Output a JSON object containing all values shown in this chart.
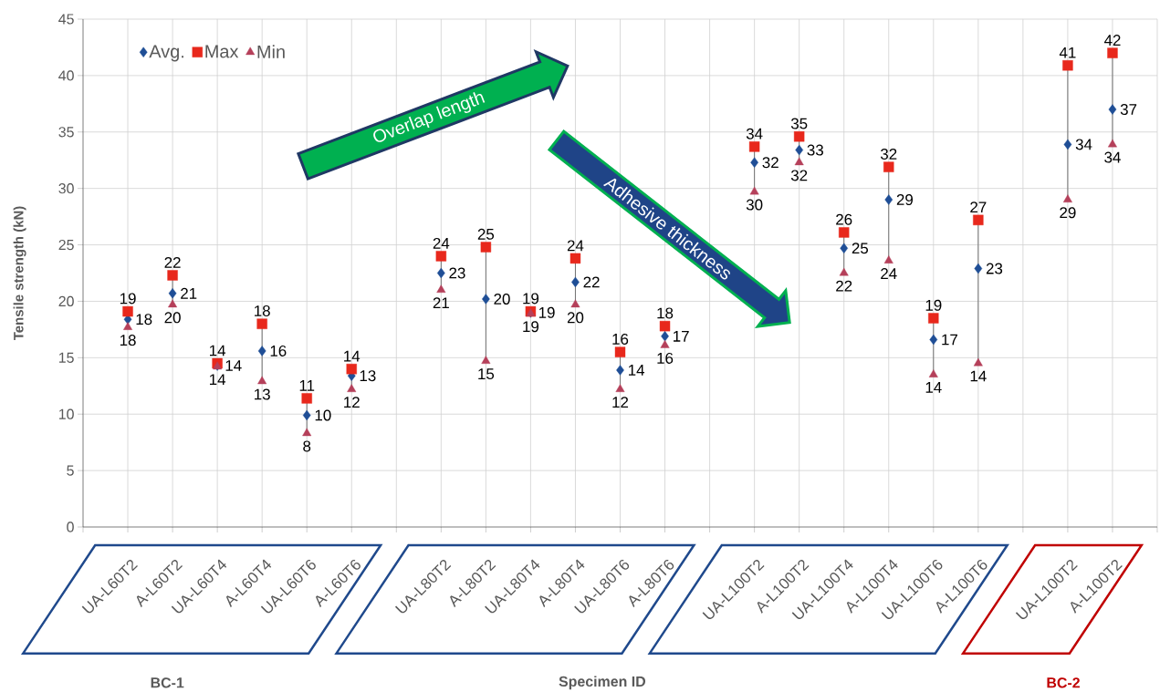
{
  "chart_data": {
    "type": "scatter",
    "ylabel": "Tensile strength (kN)",
    "xlabel": "Specimen ID",
    "categories": [
      "UA-L60T2",
      "A-L60T2",
      "UA-L60T4",
      "A-L60T4",
      "UA-L60T6",
      "A-L60T6",
      null,
      "UA-L80T2",
      "A-L80T2",
      "UA-L80T4",
      "A-L80T4",
      "UA-L80T6",
      "A-L80T6",
      null,
      "UA-L100T2",
      "A-L100T2",
      "UA-L100T4",
      "A-L100T4",
      "UA-L100T6",
      "A-L100T6",
      null,
      "UA-L100T2",
      "A-L100T2"
    ],
    "series": [
      {
        "name": "Avg.",
        "color": "#1f4e96",
        "marker": "diamond",
        "values": [
          18.4,
          20.7,
          14.3,
          15.6,
          9.9,
          13.4,
          null,
          22.5,
          20.2,
          19.0,
          21.7,
          13.9,
          16.9,
          null,
          32.3,
          33.4,
          24.7,
          29.0,
          16.6,
          22.9,
          null,
          33.9,
          37.0
        ],
        "value_labels": [
          "18",
          "21",
          "14",
          "16",
          "10",
          "13",
          null,
          "23",
          "20",
          "19",
          "22",
          "14",
          "17",
          null,
          "32",
          "33",
          "25",
          "29",
          "17",
          "23",
          null,
          "34",
          "37"
        ]
      },
      {
        "name": "Max",
        "color": "#e8281c",
        "marker": "square",
        "values": [
          19.1,
          22.3,
          14.5,
          18.0,
          11.4,
          14.0,
          null,
          24.0,
          24.8,
          19.1,
          23.8,
          15.5,
          17.8,
          null,
          33.7,
          34.6,
          26.1,
          31.9,
          18.5,
          27.2,
          null,
          40.9,
          42.0
        ],
        "value_labels": [
          "19",
          "22",
          "14",
          "18",
          "11",
          "14",
          null,
          "24",
          "25",
          "19",
          "24",
          "16",
          "18",
          null,
          "34",
          "35",
          "26",
          "32",
          "19",
          "27",
          null,
          "41",
          "42"
        ]
      },
      {
        "name": "Min",
        "color": "#b5405a",
        "marker": "triangle",
        "values": [
          17.7,
          19.7,
          14.2,
          12.9,
          8.3,
          12.2,
          null,
          21.0,
          14.7,
          18.9,
          19.7,
          12.2,
          16.1,
          null,
          29.7,
          32.3,
          22.5,
          23.6,
          13.5,
          14.5,
          null,
          29.0,
          33.9
        ],
        "value_labels": [
          "18",
          "20",
          "14",
          "13",
          "8",
          "12",
          null,
          "21",
          "15",
          "19",
          "20",
          "12",
          "16",
          null,
          "30",
          "32",
          "22",
          "24",
          "14",
          "14",
          null,
          "29",
          "34"
        ]
      }
    ],
    "ylim": [
      0,
      45
    ],
    "yticks": [
      0,
      5,
      10,
      15,
      20,
      25,
      30,
      35,
      40,
      45
    ],
    "grid": true,
    "legend": "top left",
    "annotations": [
      "Overlap length",
      "Adhesive thickness",
      "BC-1",
      "BC-2"
    ]
  }
}
